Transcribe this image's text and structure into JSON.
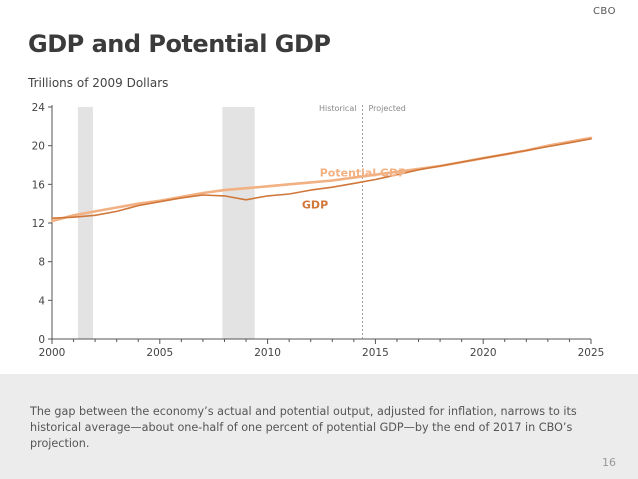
{
  "header": {
    "org": "CBO",
    "title": "GDP and Potential GDP",
    "unit_label": "Trillions of 2009 Dollars"
  },
  "footer": {
    "caption": "The gap between the economy’s actual and potential output, adjusted for inflation, narrows to its historical average—about one-half of one percent of potential GDP—by the end of 2017 in CBO’s projection.",
    "page_number": "16"
  },
  "colors": {
    "gdp": "#d0773a",
    "potential": "#f2b183",
    "recession": "#e3e3e3",
    "axis": "#555555"
  },
  "chart_data": {
    "type": "line",
    "title": "GDP and Potential GDP",
    "ylabel": "Trillions of 2009 Dollars",
    "xlim": [
      2000,
      2025
    ],
    "ylim": [
      0,
      24
    ],
    "x_ticks": [
      2000,
      2005,
      2010,
      2015,
      2020,
      2025
    ],
    "y_ticks": [
      0,
      4,
      8,
      12,
      16,
      20,
      24
    ],
    "grid": false,
    "recessions": [
      [
        2001.2,
        2001.9
      ],
      [
        2007.9,
        2009.4
      ]
    ],
    "divider": {
      "x": 2014.4,
      "left_label": "Historical",
      "right_label": "Projected"
    },
    "series": [
      {
        "name": "GDP",
        "x": [
          2000,
          2001,
          2002,
          2003,
          2004,
          2005,
          2006,
          2007,
          2008,
          2009,
          2010,
          2011,
          2012,
          2013,
          2014,
          2015,
          2016,
          2017,
          2018,
          2019,
          2020,
          2021,
          2022,
          2023,
          2024,
          2025
        ],
        "values": [
          12.5,
          12.6,
          12.8,
          13.2,
          13.8,
          14.2,
          14.6,
          14.9,
          14.8,
          14.4,
          14.8,
          15.0,
          15.4,
          15.7,
          16.1,
          16.5,
          17.0,
          17.5,
          17.9,
          18.3,
          18.7,
          19.1,
          19.5,
          19.9,
          20.3,
          20.7
        ]
      },
      {
        "name": "Potential GDP",
        "x": [
          2000,
          2001,
          2002,
          2003,
          2004,
          2005,
          2006,
          2007,
          2008,
          2009,
          2010,
          2011,
          2012,
          2013,
          2014,
          2015,
          2016,
          2017,
          2018,
          2019,
          2020,
          2021,
          2022,
          2023,
          2024,
          2025
        ],
        "values": [
          12.2,
          12.8,
          13.2,
          13.6,
          14.0,
          14.3,
          14.7,
          15.1,
          15.4,
          15.6,
          15.8,
          16.0,
          16.2,
          16.4,
          16.7,
          17.0,
          17.3,
          17.6,
          17.9,
          18.3,
          18.7,
          19.1,
          19.5,
          20.0,
          20.4,
          20.8
        ]
      }
    ]
  }
}
